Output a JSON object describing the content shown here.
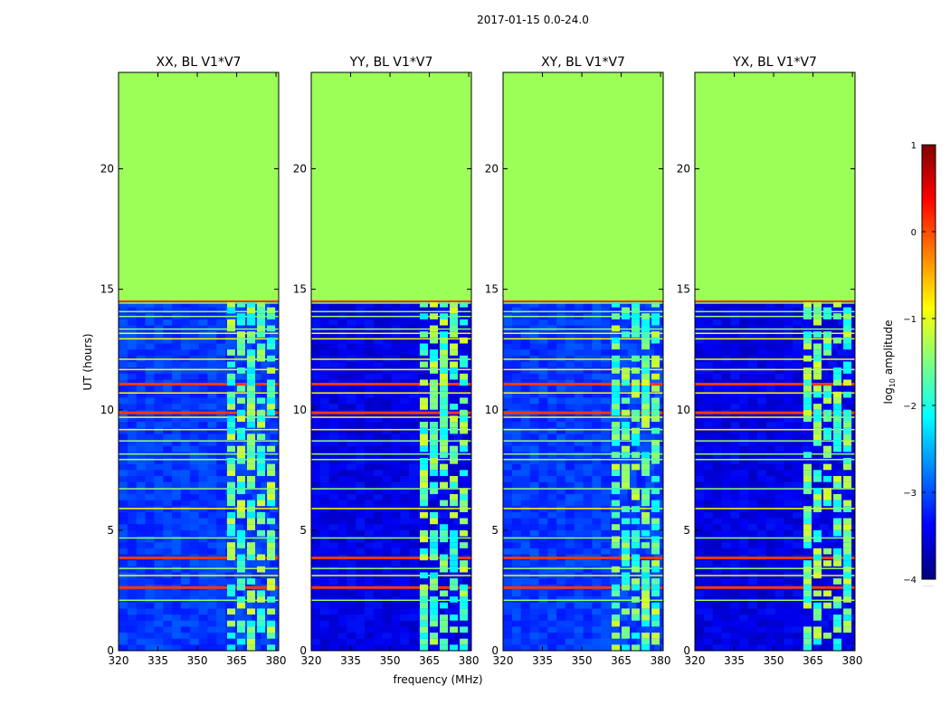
{
  "figure": {
    "suptitle": "2017-01-15 0.0-24.0",
    "xlabel": "frequency (MHz)",
    "ylabel": "UT (hours)",
    "colorbar_label_prefix": "log",
    "colorbar_label_sub": "10",
    "colorbar_label_suffix": " amplitude",
    "colorbar_extra_text": "......"
  },
  "colors": {
    "no_data": "#9bff58",
    "jet_stops": [
      "#00007f",
      "#0000ff",
      "#007fff",
      "#00ffff",
      "#7fff7f",
      "#ffff00",
      "#ff7f00",
      "#ff0000",
      "#7f0000"
    ]
  },
  "chart_data": {
    "type": "heatmap",
    "panels": [
      {
        "title": "XX, BL V1*V7"
      },
      {
        "title": "YY, BL V1*V7"
      },
      {
        "title": "XY, BL V1*V7"
      },
      {
        "title": "YX, BL V1*V7"
      }
    ],
    "xlim": [
      320,
      381
    ],
    "xticks": [
      320,
      335,
      350,
      365,
      380
    ],
    "ylim": [
      0,
      24
    ],
    "yticks": [
      0,
      5,
      10,
      15,
      20
    ],
    "data_ut_range": [
      0,
      14.5
    ],
    "no_data_value": -1.2,
    "background_value_xx_xy": -3.1,
    "background_value_yy_yx": -3.5,
    "rfi_band_mhz": [
      361,
      380
    ],
    "rfi_band_value": -2.0,
    "colorbar": {
      "vmin": -4,
      "vmax": 1,
      "ticks": [
        1,
        0,
        -1,
        -2,
        -3,
        -4
      ],
      "tick_labels": [
        "1",
        "0",
        "−1",
        "−2",
        "−3",
        "−4"
      ]
    }
  }
}
